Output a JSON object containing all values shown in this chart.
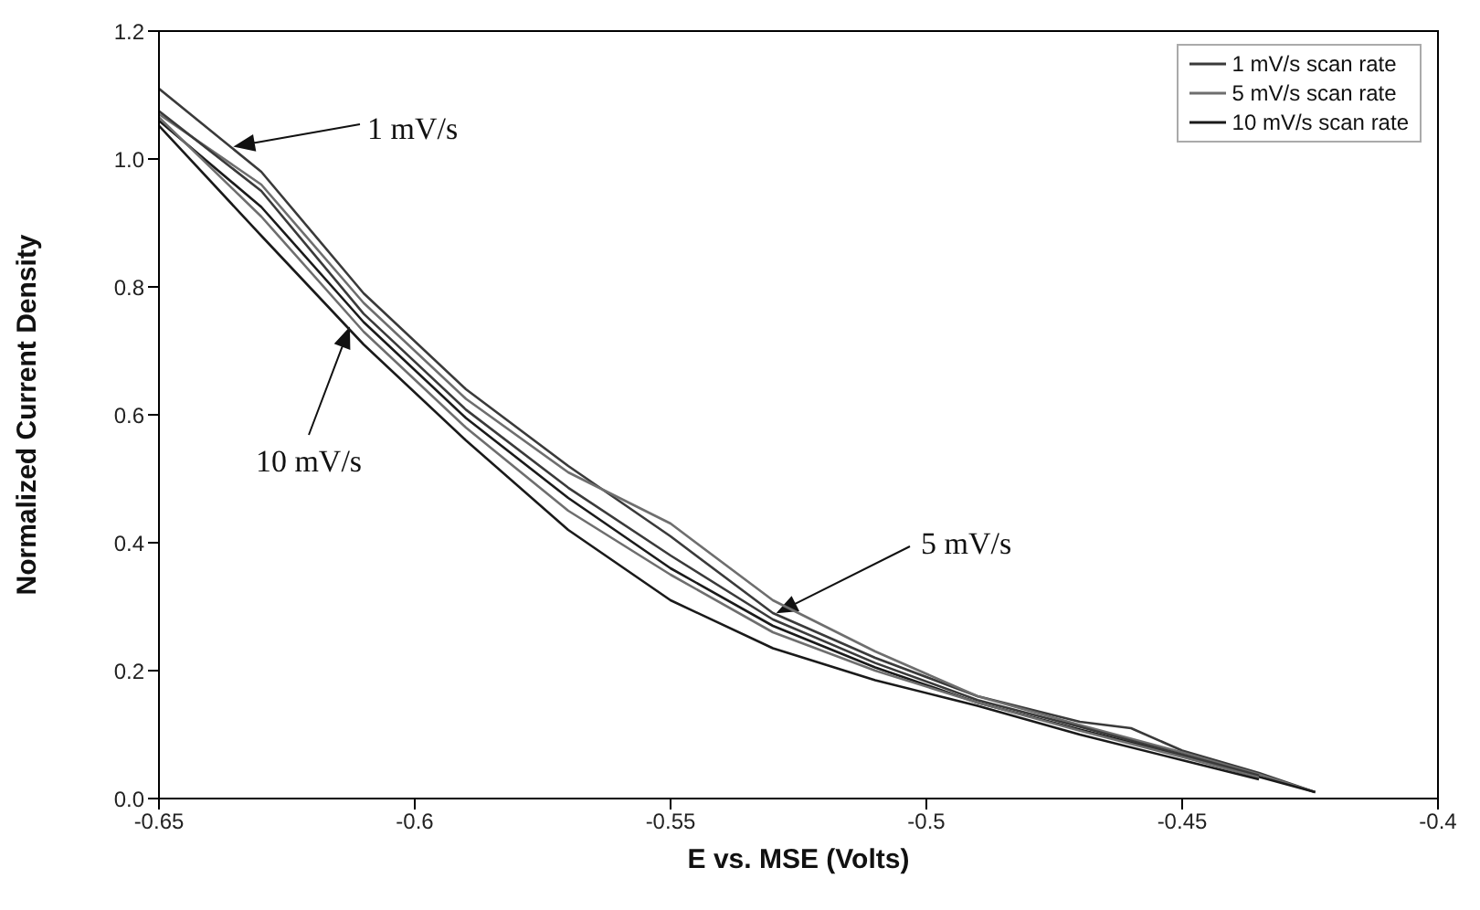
{
  "chart_data": {
    "type": "line",
    "xlabel": "E vs. MSE (Volts)",
    "ylabel": "Normalized Current Density",
    "xlim": [
      -0.65,
      -0.4
    ],
    "xticks": [
      -0.65,
      -0.6,
      -0.55,
      -0.5,
      -0.45,
      -0.4
    ],
    "ylim": [
      0,
      1.2
    ],
    "yticks": [
      {
        "value": 0,
        "label": "0.0"
      },
      0.2,
      0.4,
      0.6,
      0.8,
      {
        "value": 1,
        "label": "1.0"
      },
      1.2
    ],
    "legend": "top right",
    "grid": false,
    "series": [
      {
        "name": "1 mV/s scan rate",
        "color": "#3a3a3a",
        "x": [
          -0.65,
          -0.63,
          -0.61,
          -0.59,
          -0.57,
          -0.55,
          -0.53,
          -0.51,
          -0.49,
          -0.47,
          -0.46,
          -0.45,
          -0.435,
          -0.424
        ],
        "values": [
          1.11,
          0.98,
          0.79,
          0.64,
          0.52,
          0.41,
          0.29,
          0.22,
          0.16,
          0.12,
          0.11,
          0.075,
          0.04,
          0.01
        ]
      },
      {
        "name": "5 mV/s scan rate",
        "color": "#6e6e6e",
        "x": [
          -0.65,
          -0.63,
          -0.61,
          -0.59,
          -0.57,
          -0.55,
          -0.53,
          -0.51,
          -0.49,
          -0.47,
          -0.45,
          -0.435,
          -0.424
        ],
        "values": [
          1.07,
          0.96,
          0.775,
          0.625,
          0.51,
          0.43,
          0.31,
          0.23,
          0.16,
          0.115,
          0.072,
          0.038,
          0.01
        ]
      },
      {
        "name": "10 mV/s scan rate",
        "color": "#1a1a1a",
        "x": [
          -0.65,
          -0.63,
          -0.61,
          -0.59,
          -0.57,
          -0.55,
          -0.53,
          -0.51,
          -0.49,
          -0.47,
          -0.45,
          -0.435,
          -0.424
        ],
        "values": [
          1.06,
          0.925,
          0.745,
          0.595,
          0.47,
          0.36,
          0.27,
          0.205,
          0.15,
          0.108,
          0.067,
          0.034,
          0.01
        ]
      },
      {
        "color": "#3a3a3a",
        "x": [
          -0.65,
          -0.63,
          -0.61,
          -0.59,
          -0.57,
          -0.55,
          -0.53,
          -0.51,
          -0.49,
          -0.47,
          -0.45,
          -0.435
        ],
        "values": [
          1.075,
          0.95,
          0.758,
          0.608,
          0.486,
          0.38,
          0.28,
          0.212,
          0.154,
          0.112,
          0.069,
          0.036
        ]
      },
      {
        "color": "#6e6e6e",
        "x": [
          -0.65,
          -0.63,
          -0.61,
          -0.59,
          -0.57,
          -0.55,
          -0.53,
          -0.51,
          -0.49,
          -0.47,
          -0.45,
          -0.435
        ],
        "values": [
          1.065,
          0.91,
          0.73,
          0.58,
          0.45,
          0.35,
          0.26,
          0.2,
          0.15,
          0.106,
          0.065,
          0.033
        ]
      },
      {
        "color": "#1a1a1a",
        "x": [
          -0.65,
          -0.63,
          -0.61,
          -0.59,
          -0.57,
          -0.55,
          -0.53,
          -0.51,
          -0.49,
          -0.47,
          -0.45,
          -0.435
        ],
        "values": [
          1.052,
          0.88,
          0.71,
          0.56,
          0.42,
          0.31,
          0.235,
          0.185,
          0.145,
          0.1,
          0.06,
          0.03
        ]
      }
    ],
    "annotations": [
      "1 mV/s",
      "10 mV/s",
      "5 mV/s"
    ]
  }
}
